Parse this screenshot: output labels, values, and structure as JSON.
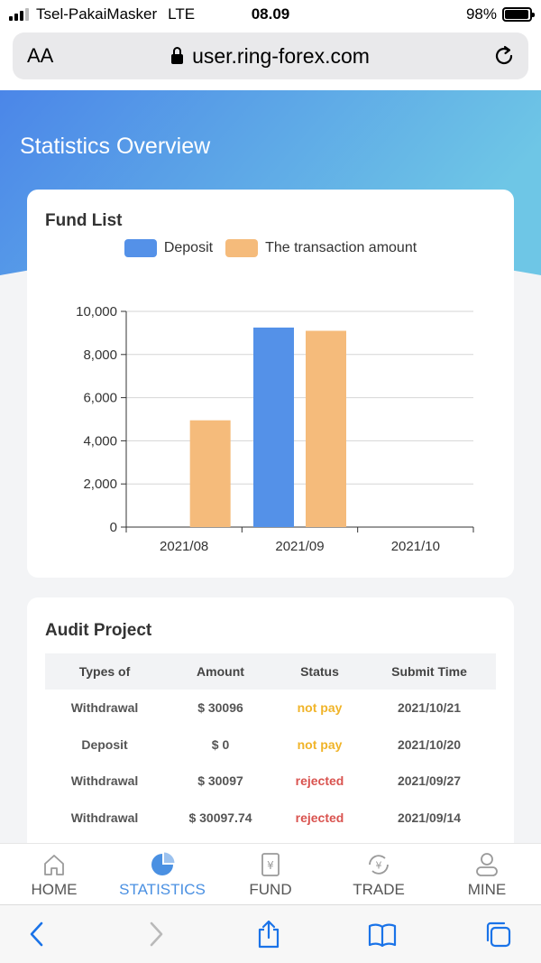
{
  "status_bar": {
    "carrier": "Tsel-PakaiMasker",
    "network": "LTE",
    "time": "08.09",
    "battery_percent": "98%",
    "battery_level": 0.98
  },
  "browser": {
    "text_size_label": "AA",
    "url": "user.ring-forex.com"
  },
  "page": {
    "title": "Statistics Overview"
  },
  "fund_list": {
    "title": "Fund List",
    "legend": [
      {
        "label": "Deposit",
        "color": "#5491e8"
      },
      {
        "label": "The transaction amount",
        "color": "#f5bb7b"
      }
    ]
  },
  "chart_data": {
    "type": "bar",
    "categories": [
      "2021/08",
      "2021/09",
      "2021/10"
    ],
    "series": [
      {
        "name": "Deposit",
        "values": [
          0,
          9250,
          0
        ],
        "color": "#5491e8"
      },
      {
        "name": "The transaction amount",
        "values": [
          4950,
          9100,
          0
        ],
        "color": "#f5bb7b"
      }
    ],
    "ylim": [
      0,
      10000
    ],
    "yticks": [
      "0",
      "2,000",
      "4,000",
      "6,000",
      "8,000",
      "10,000"
    ],
    "ytick_values": [
      0,
      2000,
      4000,
      6000,
      8000,
      10000
    ],
    "grid": true,
    "legend_position": "top-center"
  },
  "audit": {
    "title": "Audit Project",
    "columns": [
      "Types of",
      "Amount",
      "Status",
      "Submit Time"
    ],
    "rows": [
      {
        "type": "Withdrawal",
        "amount": "$ 30096",
        "status": "not pay",
        "status_color": "#f0b429",
        "time": "2021/10/21"
      },
      {
        "type": "Deposit",
        "amount": "$ 0",
        "status": "not pay",
        "status_color": "#f0b429",
        "time": "2021/10/20"
      },
      {
        "type": "Withdrawal",
        "amount": "$ 30097",
        "status": "rejected",
        "status_color": "#d9534f",
        "time": "2021/09/27"
      },
      {
        "type": "Withdrawal",
        "amount": "$ 30097.74",
        "status": "rejected",
        "status_color": "#d9534f",
        "time": "2021/09/14"
      }
    ]
  },
  "tabs": [
    {
      "label": "HOME",
      "icon": "home-icon",
      "active": false
    },
    {
      "label": "STATISTICS",
      "icon": "pie-chart-icon",
      "active": true
    },
    {
      "label": "FUND",
      "icon": "fund-icon",
      "active": false
    },
    {
      "label": "TRADE",
      "icon": "trade-icon",
      "active": false
    },
    {
      "label": "MINE",
      "icon": "user-icon",
      "active": false
    }
  ],
  "colors": {
    "accent": "#4a90e2",
    "header_gradient_start": "#4b86e8",
    "header_gradient_end": "#6ec6e6"
  }
}
